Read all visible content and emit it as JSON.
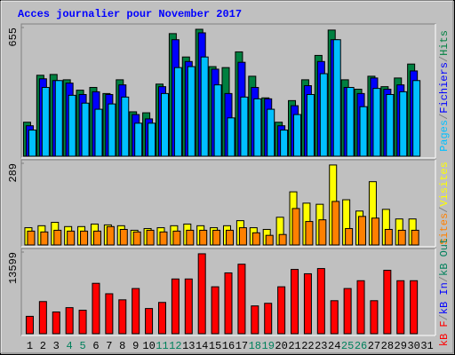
{
  "chart_data": [
    {
      "type": "bar",
      "title": "Acces journalier pour November 2017",
      "ylim": [
        0,
        655
      ],
      "yticks": [
        655
      ],
      "legend_separator": "/",
      "series": [
        {
          "name": "Pages",
          "color": "#00C0FF",
          "values": [
            133,
            350,
            385,
            310,
            270,
            239,
            266,
            301,
            168,
            168,
            319,
            451,
            456,
            505,
            363,
            195,
            301,
            292,
            239,
            133,
            212,
            314,
            420,
            593,
            350,
            252,
            345,
            314,
            328,
            385,
            null
          ]
        },
        {
          "name": "Fichiers",
          "color": "#0000FF",
          "values": [
            155,
            394,
            385,
            372,
            314,
            328,
            314,
            363,
            212,
            190,
            354,
            593,
            482,
            628,
            443,
            319,
            478,
            350,
            292,
            155,
            257,
            359,
            482,
            593,
            350,
            319,
            398,
            341,
            363,
            434,
            null
          ]
        },
        {
          "name": "Hits",
          "color": "#008040",
          "values": [
            173,
            412,
            416,
            389,
            336,
            350,
            319,
            389,
            226,
            221,
            367,
            624,
            505,
            646,
            456,
            451,
            531,
            407,
            297,
            173,
            283,
            389,
            513,
            642,
            389,
            341,
            407,
            354,
            398,
            469,
            null
          ]
        }
      ]
    },
    {
      "type": "bar",
      "ylim": [
        0,
        289
      ],
      "yticks": [
        289
      ],
      "legend_separator": "/",
      "series": [
        {
          "name": "Sites",
          "color": "#FF8000",
          "values": [
            49,
            46,
            52,
            49,
            49,
            49,
            65,
            55,
            46,
            52,
            46,
            49,
            52,
            52,
            52,
            52,
            61,
            43,
            34,
            37,
            129,
            83,
            89,
            154,
            58,
            101,
            95,
            55,
            52,
            52,
            null
          ]
        },
        {
          "name": "Visites",
          "color": "#FFFF00",
          "values": [
            61,
            68,
            80,
            65,
            65,
            74,
            71,
            68,
            52,
            58,
            61,
            68,
            74,
            68,
            61,
            68,
            86,
            61,
            55,
            98,
            188,
            148,
            144,
            283,
            160,
            120,
            224,
            126,
            92,
            92,
            null
          ]
        }
      ]
    },
    {
      "type": "bar",
      "ylim": [
        0,
        13599
      ],
      "yticks": [
        13599
      ],
      "legend_separator": "/",
      "categories": [
        "1",
        "2",
        "3",
        "4",
        "5",
        "6",
        "7",
        "8",
        "9",
        "10",
        "11",
        "12",
        "13",
        "14",
        "15",
        "16",
        "17",
        "18",
        "19",
        "20",
        "21",
        "22",
        "23",
        "24",
        "25",
        "26",
        "27",
        "28",
        "29",
        "30",
        "31"
      ],
      "label_colors": [
        "#000000",
        "#000000",
        "#000000",
        "#00805C",
        "#00805C",
        "#000000",
        "#000000",
        "#000000",
        "#000000",
        "#000000",
        "#00805C",
        "#00805C",
        "#000000",
        "#000000",
        "#000000",
        "#000000",
        "#000000",
        "#00805C",
        "#00805C",
        "#000000",
        "#000000",
        "#000000",
        "#000000",
        "#000000",
        "#00805C",
        "#00805C",
        "#000000",
        "#000000",
        "#000000",
        "#000000",
        "#000000"
      ],
      "series": [
        {
          "name": "kB F",
          "color": "#FF0000",
          "values": [
            2894,
            5354,
            3618,
            4341,
            3907,
            8393,
            6656,
            5643,
            7524,
            4196,
            5209,
            9116,
            9116,
            13312,
            7814,
            10129,
            11576,
            4630,
            5064,
            7814,
            10708,
            9984,
            10853,
            5499,
            7524,
            8827,
            5499,
            10563,
            8827,
            8827,
            null
          ]
        },
        {
          "name": "kB In",
          "color": "#0000FF"
        },
        {
          "name": "kB Out",
          "color": "#00805C"
        }
      ]
    }
  ]
}
